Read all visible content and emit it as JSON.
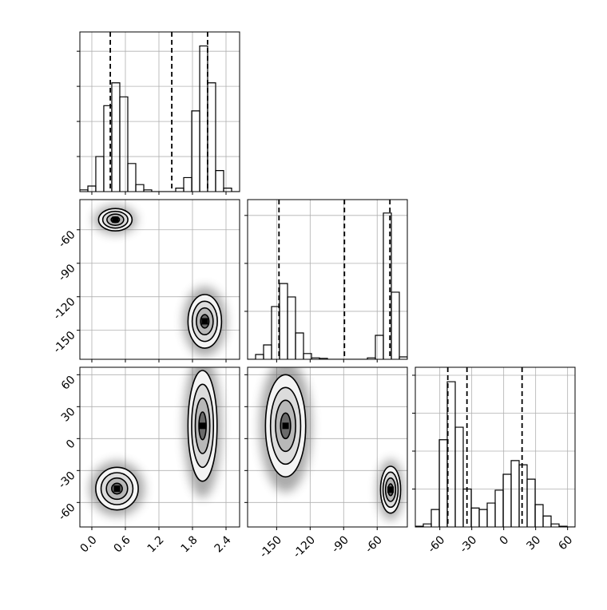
{
  "chart_data": [
    {
      "type": "histogram",
      "xlim": [
        -0.214,
        2.643
      ],
      "ylim": [
        0,
        4.55
      ],
      "xticks": [
        {
          "value": 0,
          "label": "0.0"
        },
        0.6,
        1.2,
        1.8,
        2.4
      ],
      "yticks": [
        1,
        2,
        3,
        4
      ],
      "grid": true,
      "color": "#000000",
      "bins": [
        -0.214,
        -0.071,
        0.071,
        0.214,
        0.357,
        0.5,
        0.643,
        0.786,
        0.929,
        1.071,
        1.214,
        1.357,
        1.5,
        1.643,
        1.786,
        1.929,
        2.071,
        2.214,
        2.357,
        2.5,
        2.643
      ],
      "values": [
        0.05,
        0.16,
        1.0,
        2.45,
        3.1,
        2.7,
        0.8,
        0.2,
        0.05,
        0,
        0,
        0,
        0.1,
        0.4,
        2.3,
        4.15,
        3.1,
        0.6,
        0.1,
        0
      ],
      "quantiles": [
        0.33,
        1.43,
        2.07
      ]
    },
    {
      "type": "density",
      "xlim": [
        -0.214,
        2.643
      ],
      "ylim": [
        -176,
        -33
      ],
      "xticks": [
        {
          "value": 0,
          "label": "0.0"
        },
        0.6,
        1.2,
        1.8,
        2.4
      ],
      "yticks": [
        -60,
        -90,
        -120,
        -150
      ],
      "grid": true,
      "clusters": [
        {
          "x": 0.42,
          "y": -51,
          "sx": 0.15,
          "sy": 5
        },
        {
          "x": 2.02,
          "y": -142,
          "sx": 0.15,
          "sy": 12
        }
      ]
    },
    {
      "type": "histogram",
      "xlim": [
        -176,
        -33
      ],
      "ylim": [
        0,
        3.33
      ],
      "xticks": [
        -150,
        -120,
        -90,
        -60
      ],
      "yticks": [
        1,
        2,
        3
      ],
      "grid": true,
      "color": "#000000",
      "bins": [
        -176,
        -168.85,
        -161.7,
        -154.55,
        -147.4,
        -140.25,
        -133.1,
        -125.95,
        -118.8,
        -111.65,
        -104.5,
        -97.35,
        -90.2,
        -83.05,
        -75.9,
        -68.75,
        -61.6,
        -54.45,
        -47.3,
        -40.15,
        -33
      ],
      "values": [
        0,
        0.1,
        0.3,
        1.1,
        1.58,
        1.3,
        0.55,
        0.12,
        0.03,
        0.02,
        0,
        0,
        0,
        0,
        0,
        0.03,
        0.5,
        3.05,
        1.4,
        0.05
      ],
      "quantiles": [
        -147.9,
        -89.3,
        -48.6
      ]
    },
    {
      "type": "density",
      "xlim": [
        -0.214,
        2.643
      ],
      "ylim": [
        -83,
        67
      ],
      "xticks": [
        {
          "value": 0,
          "label": "0.0"
        },
        0.6,
        1.2,
        1.8,
        2.4
      ],
      "yticks": [
        60,
        30,
        0,
        -30,
        -60
      ],
      "grid": true,
      "clusters": [
        {
          "x": 0.45,
          "y": -47,
          "sx": 0.19,
          "sy": 10
        },
        {
          "x": 1.98,
          "y": 12,
          "sx": 0.13,
          "sy": 26
        }
      ]
    },
    {
      "type": "density",
      "xlim": [
        -176,
        -33
      ],
      "ylim": [
        -83,
        67
      ],
      "xticks": [
        -150,
        -120,
        -90,
        -60
      ],
      "yticks": [
        60,
        30,
        0,
        -30,
        -60
      ],
      "grid": true,
      "clusters": [
        {
          "x": -142,
          "y": 12,
          "sx": 9,
          "sy": 24
        },
        {
          "x": -48,
          "y": -48,
          "sx": 4.5,
          "sy": 11
        }
      ]
    },
    {
      "type": "histogram",
      "xlim": [
        -83,
        67
      ],
      "ylim": [
        0,
        4.21
      ],
      "xticks": [
        -60,
        -30,
        0,
        30,
        60
      ],
      "yticks": [
        1,
        2,
        3,
        4
      ],
      "grid": true,
      "color": "#000000",
      "bins": [
        -83,
        -75.5,
        -68,
        -60.5,
        -53,
        -45.5,
        -38,
        -30.5,
        -23,
        -15.5,
        -8,
        -0.5,
        7,
        14.5,
        22,
        29.5,
        37,
        44.5,
        52,
        59.5,
        67
      ],
      "values": [
        0.02,
        0.08,
        0.46,
        2.3,
        3.83,
        2.63,
        1.0,
        0.5,
        0.46,
        0.63,
        0.97,
        1.39,
        1.75,
        1.64,
        1.26,
        0.59,
        0.29,
        0.08,
        0.02,
        0
      ],
      "quantiles": [
        -52.5,
        -34.5,
        17.25
      ]
    }
  ]
}
